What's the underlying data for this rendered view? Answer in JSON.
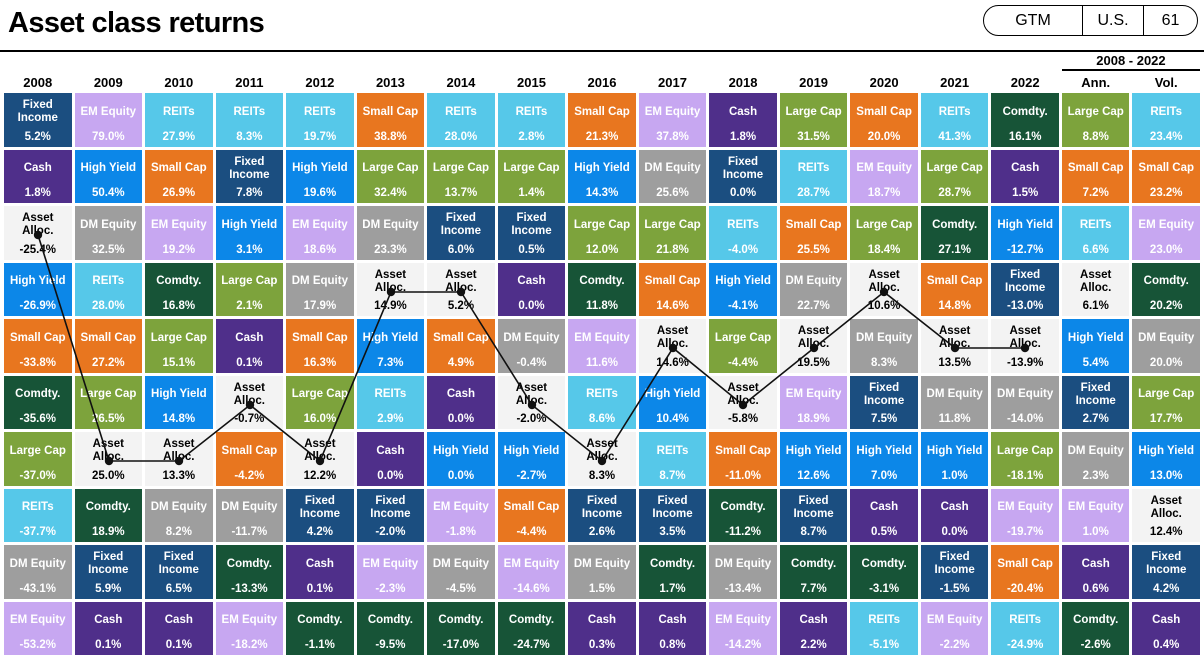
{
  "header": {
    "title": "Asset class returns",
    "badge": {
      "gtm": "GTM",
      "region": "U.S.",
      "page": "61"
    }
  },
  "chart_data": {
    "type": "table",
    "title": "Asset class returns",
    "period_label": "2008 - 2022",
    "legend_position": "none",
    "columns": [
      {
        "key": "y2008",
        "label": "2008"
      },
      {
        "key": "y2009",
        "label": "2009"
      },
      {
        "key": "y2010",
        "label": "2010"
      },
      {
        "key": "y2011",
        "label": "2011"
      },
      {
        "key": "y2012",
        "label": "2012"
      },
      {
        "key": "y2013",
        "label": "2013"
      },
      {
        "key": "y2014",
        "label": "2014"
      },
      {
        "key": "y2015",
        "label": "2015"
      },
      {
        "key": "y2016",
        "label": "2016"
      },
      {
        "key": "y2017",
        "label": "2017"
      },
      {
        "key": "y2018",
        "label": "2018"
      },
      {
        "key": "y2019",
        "label": "2019"
      },
      {
        "key": "y2020",
        "label": "2020"
      },
      {
        "key": "y2021",
        "label": "2021"
      },
      {
        "key": "y2022",
        "label": "2022"
      },
      {
        "key": "ann",
        "label": "Ann."
      },
      {
        "key": "vol",
        "label": "Vol."
      }
    ],
    "asset_classes": {
      "large_cap": {
        "label": "Large Cap",
        "color": "#7da33c"
      },
      "small_cap": {
        "label": "Small Cap",
        "color": "#e8761f"
      },
      "em_equity": {
        "label": "EM Equity",
        "color": "#c7a7f1"
      },
      "dm_equity": {
        "label": "DM Equity",
        "color": "#9e9e9e"
      },
      "reits": {
        "label": "REITs",
        "color": "#56c8e9"
      },
      "fixed_income": {
        "label": "Fixed Income",
        "color": "#1b4e80"
      },
      "high_yield": {
        "label": "High Yield",
        "color": "#0c87e8"
      },
      "cash": {
        "label": "Cash",
        "color": "#4f2f8a"
      },
      "comdty": {
        "label": "Comdty.",
        "color": "#175437"
      },
      "asset_alloc": {
        "label": "Asset Alloc.",
        "color": "#f3f3f3",
        "text_color": "#000000"
      }
    },
    "grid": {
      "y2008": [
        {
          "asset": "fixed_income",
          "value": "5.2%"
        },
        {
          "asset": "cash",
          "value": "1.8%"
        },
        {
          "asset": "asset_alloc",
          "value": "-25.4%"
        },
        {
          "asset": "high_yield",
          "value": "-26.9%"
        },
        {
          "asset": "small_cap",
          "value": "-33.8%"
        },
        {
          "asset": "comdty",
          "value": "-35.6%"
        },
        {
          "asset": "large_cap",
          "value": "-37.0%"
        },
        {
          "asset": "reits",
          "value": "-37.7%"
        },
        {
          "asset": "dm_equity",
          "value": "-43.1%"
        },
        {
          "asset": "em_equity",
          "value": "-53.2%"
        }
      ],
      "y2009": [
        {
          "asset": "em_equity",
          "value": "79.0%"
        },
        {
          "asset": "high_yield",
          "value": "50.4%"
        },
        {
          "asset": "dm_equity",
          "value": "32.5%"
        },
        {
          "asset": "reits",
          "value": "28.0%"
        },
        {
          "asset": "small_cap",
          "value": "27.2%"
        },
        {
          "asset": "large_cap",
          "value": "26.5%"
        },
        {
          "asset": "asset_alloc",
          "value": "25.0%"
        },
        {
          "asset": "comdty",
          "value": "18.9%"
        },
        {
          "asset": "fixed_income",
          "value": "5.9%"
        },
        {
          "asset": "cash",
          "value": "0.1%"
        }
      ],
      "y2010": [
        {
          "asset": "reits",
          "value": "27.9%"
        },
        {
          "asset": "small_cap",
          "value": "26.9%"
        },
        {
          "asset": "em_equity",
          "value": "19.2%"
        },
        {
          "asset": "comdty",
          "value": "16.8%"
        },
        {
          "asset": "large_cap",
          "value": "15.1%"
        },
        {
          "asset": "high_yield",
          "value": "14.8%"
        },
        {
          "asset": "asset_alloc",
          "value": "13.3%"
        },
        {
          "asset": "dm_equity",
          "value": "8.2%"
        },
        {
          "asset": "fixed_income",
          "value": "6.5%"
        },
        {
          "asset": "cash",
          "value": "0.1%"
        }
      ],
      "y2011": [
        {
          "asset": "reits",
          "value": "8.3%"
        },
        {
          "asset": "fixed_income",
          "value": "7.8%"
        },
        {
          "asset": "high_yield",
          "value": "3.1%"
        },
        {
          "asset": "large_cap",
          "value": "2.1%"
        },
        {
          "asset": "cash",
          "value": "0.1%"
        },
        {
          "asset": "asset_alloc",
          "value": "-0.7%"
        },
        {
          "asset": "small_cap",
          "value": "-4.2%"
        },
        {
          "asset": "dm_equity",
          "value": "-11.7%"
        },
        {
          "asset": "comdty",
          "value": "-13.3%"
        },
        {
          "asset": "em_equity",
          "value": "-18.2%"
        }
      ],
      "y2012": [
        {
          "asset": "reits",
          "value": "19.7%"
        },
        {
          "asset": "high_yield",
          "value": "19.6%"
        },
        {
          "asset": "em_equity",
          "value": "18.6%"
        },
        {
          "asset": "dm_equity",
          "value": "17.9%"
        },
        {
          "asset": "small_cap",
          "value": "16.3%"
        },
        {
          "asset": "large_cap",
          "value": "16.0%"
        },
        {
          "asset": "asset_alloc",
          "value": "12.2%"
        },
        {
          "asset": "fixed_income",
          "value": "4.2%"
        },
        {
          "asset": "cash",
          "value": "0.1%"
        },
        {
          "asset": "comdty",
          "value": "-1.1%"
        }
      ],
      "y2013": [
        {
          "asset": "small_cap",
          "value": "38.8%"
        },
        {
          "asset": "large_cap",
          "value": "32.4%"
        },
        {
          "asset": "dm_equity",
          "value": "23.3%"
        },
        {
          "asset": "asset_alloc",
          "value": "14.9%"
        },
        {
          "asset": "high_yield",
          "value": "7.3%"
        },
        {
          "asset": "reits",
          "value": "2.9%"
        },
        {
          "asset": "cash",
          "value": "0.0%"
        },
        {
          "asset": "fixed_income",
          "value": "-2.0%"
        },
        {
          "asset": "em_equity",
          "value": "-2.3%"
        },
        {
          "asset": "comdty",
          "value": "-9.5%"
        }
      ],
      "y2014": [
        {
          "asset": "reits",
          "value": "28.0%"
        },
        {
          "asset": "large_cap",
          "value": "13.7%"
        },
        {
          "asset": "fixed_income",
          "value": "6.0%"
        },
        {
          "asset": "asset_alloc",
          "value": "5.2%"
        },
        {
          "asset": "small_cap",
          "value": "4.9%"
        },
        {
          "asset": "cash",
          "value": "0.0%"
        },
        {
          "asset": "high_yield",
          "value": "0.0%"
        },
        {
          "asset": "em_equity",
          "value": "-1.8%"
        },
        {
          "asset": "dm_equity",
          "value": "-4.5%"
        },
        {
          "asset": "comdty",
          "value": "-17.0%"
        }
      ],
      "y2015": [
        {
          "asset": "reits",
          "value": "2.8%"
        },
        {
          "asset": "large_cap",
          "value": "1.4%"
        },
        {
          "asset": "fixed_income",
          "value": "0.5%"
        },
        {
          "asset": "cash",
          "value": "0.0%"
        },
        {
          "asset": "dm_equity",
          "value": "-0.4%"
        },
        {
          "asset": "asset_alloc",
          "value": "-2.0%"
        },
        {
          "asset": "high_yield",
          "value": "-2.7%"
        },
        {
          "asset": "small_cap",
          "value": "-4.4%"
        },
        {
          "asset": "em_equity",
          "value": "-14.6%"
        },
        {
          "asset": "comdty",
          "value": "-24.7%"
        }
      ],
      "y2016": [
        {
          "asset": "small_cap",
          "value": "21.3%"
        },
        {
          "asset": "high_yield",
          "value": "14.3%"
        },
        {
          "asset": "large_cap",
          "value": "12.0%"
        },
        {
          "asset": "comdty",
          "value": "11.8%"
        },
        {
          "asset": "em_equity",
          "value": "11.6%"
        },
        {
          "asset": "reits",
          "value": "8.6%"
        },
        {
          "asset": "asset_alloc",
          "value": "8.3%"
        },
        {
          "asset": "fixed_income",
          "value": "2.6%"
        },
        {
          "asset": "dm_equity",
          "value": "1.5%"
        },
        {
          "asset": "cash",
          "value": "0.3%"
        }
      ],
      "y2017": [
        {
          "asset": "em_equity",
          "value": "37.8%"
        },
        {
          "asset": "dm_equity",
          "value": "25.6%"
        },
        {
          "asset": "large_cap",
          "value": "21.8%"
        },
        {
          "asset": "small_cap",
          "value": "14.6%"
        },
        {
          "asset": "asset_alloc",
          "value": "14.6%"
        },
        {
          "asset": "high_yield",
          "value": "10.4%"
        },
        {
          "asset": "reits",
          "value": "8.7%"
        },
        {
          "asset": "fixed_income",
          "value": "3.5%"
        },
        {
          "asset": "comdty",
          "value": "1.7%"
        },
        {
          "asset": "cash",
          "value": "0.8%"
        }
      ],
      "y2018": [
        {
          "asset": "cash",
          "value": "1.8%"
        },
        {
          "asset": "fixed_income",
          "value": "0.0%"
        },
        {
          "asset": "reits",
          "value": "-4.0%"
        },
        {
          "asset": "high_yield",
          "value": "-4.1%"
        },
        {
          "asset": "large_cap",
          "value": "-4.4%"
        },
        {
          "asset": "asset_alloc",
          "value": "-5.8%"
        },
        {
          "asset": "small_cap",
          "value": "-11.0%"
        },
        {
          "asset": "comdty",
          "value": "-11.2%"
        },
        {
          "asset": "dm_equity",
          "value": "-13.4%"
        },
        {
          "asset": "em_equity",
          "value": "-14.2%"
        }
      ],
      "y2019": [
        {
          "asset": "large_cap",
          "value": "31.5%"
        },
        {
          "asset": "reits",
          "value": "28.7%"
        },
        {
          "asset": "small_cap",
          "value": "25.5%"
        },
        {
          "asset": "dm_equity",
          "value": "22.7%"
        },
        {
          "asset": "asset_alloc",
          "value": "19.5%"
        },
        {
          "asset": "em_equity",
          "value": "18.9%"
        },
        {
          "asset": "high_yield",
          "value": "12.6%"
        },
        {
          "asset": "fixed_income",
          "value": "8.7%"
        },
        {
          "asset": "comdty",
          "value": "7.7%"
        },
        {
          "asset": "cash",
          "value": "2.2%"
        }
      ],
      "y2020": [
        {
          "asset": "small_cap",
          "value": "20.0%"
        },
        {
          "asset": "em_equity",
          "value": "18.7%"
        },
        {
          "asset": "large_cap",
          "value": "18.4%"
        },
        {
          "asset": "asset_alloc",
          "value": "10.6%"
        },
        {
          "asset": "dm_equity",
          "value": "8.3%"
        },
        {
          "asset": "fixed_income",
          "value": "7.5%"
        },
        {
          "asset": "high_yield",
          "value": "7.0%"
        },
        {
          "asset": "cash",
          "value": "0.5%"
        },
        {
          "asset": "comdty",
          "value": "-3.1%"
        },
        {
          "asset": "reits",
          "value": "-5.1%"
        }
      ],
      "y2021": [
        {
          "asset": "reits",
          "value": "41.3%"
        },
        {
          "asset": "large_cap",
          "value": "28.7%"
        },
        {
          "asset": "comdty",
          "value": "27.1%"
        },
        {
          "asset": "small_cap",
          "value": "14.8%"
        },
        {
          "asset": "asset_alloc",
          "value": "13.5%"
        },
        {
          "asset": "dm_equity",
          "value": "11.8%"
        },
        {
          "asset": "high_yield",
          "value": "1.0%"
        },
        {
          "asset": "cash",
          "value": "0.0%"
        },
        {
          "asset": "fixed_income",
          "value": "-1.5%"
        },
        {
          "asset": "em_equity",
          "value": "-2.2%"
        }
      ],
      "y2022": [
        {
          "asset": "comdty",
          "value": "16.1%"
        },
        {
          "asset": "cash",
          "value": "1.5%"
        },
        {
          "asset": "high_yield",
          "value": "-12.7%"
        },
        {
          "asset": "fixed_income",
          "value": "-13.0%"
        },
        {
          "asset": "asset_alloc",
          "value": "-13.9%"
        },
        {
          "asset": "dm_equity",
          "value": "-14.0%"
        },
        {
          "asset": "large_cap",
          "value": "-18.1%"
        },
        {
          "asset": "em_equity",
          "value": "-19.7%"
        },
        {
          "asset": "small_cap",
          "value": "-20.4%"
        },
        {
          "asset": "reits",
          "value": "-24.9%"
        }
      ],
      "ann": [
        {
          "asset": "large_cap",
          "value": "8.8%"
        },
        {
          "asset": "small_cap",
          "value": "7.2%"
        },
        {
          "asset": "reits",
          "value": "6.6%"
        },
        {
          "asset": "asset_alloc",
          "value": "6.1%"
        },
        {
          "asset": "high_yield",
          "value": "5.4%"
        },
        {
          "asset": "fixed_income",
          "value": "2.7%"
        },
        {
          "asset": "dm_equity",
          "value": "2.3%"
        },
        {
          "asset": "em_equity",
          "value": "1.0%"
        },
        {
          "asset": "cash",
          "value": "0.6%"
        },
        {
          "asset": "comdty",
          "value": "-2.6%"
        }
      ],
      "vol": [
        {
          "asset": "reits",
          "value": "23.4%"
        },
        {
          "asset": "small_cap",
          "value": "23.2%"
        },
        {
          "asset": "em_equity",
          "value": "23.0%"
        },
        {
          "asset": "comdty",
          "value": "20.2%"
        },
        {
          "asset": "dm_equity",
          "value": "20.0%"
        },
        {
          "asset": "large_cap",
          "value": "17.7%"
        },
        {
          "asset": "high_yield",
          "value": "13.0%"
        },
        {
          "asset": "asset_alloc",
          "value": "12.4%"
        },
        {
          "asset": "fixed_income",
          "value": "4.2%"
        },
        {
          "asset": "cash",
          "value": "0.4%"
        }
      ]
    },
    "line_overlay": {
      "asset": "asset_alloc",
      "color": "#111111",
      "note": "Black dotted line traces the Asset Alloc. cell in each year column 2008-2022"
    }
  }
}
